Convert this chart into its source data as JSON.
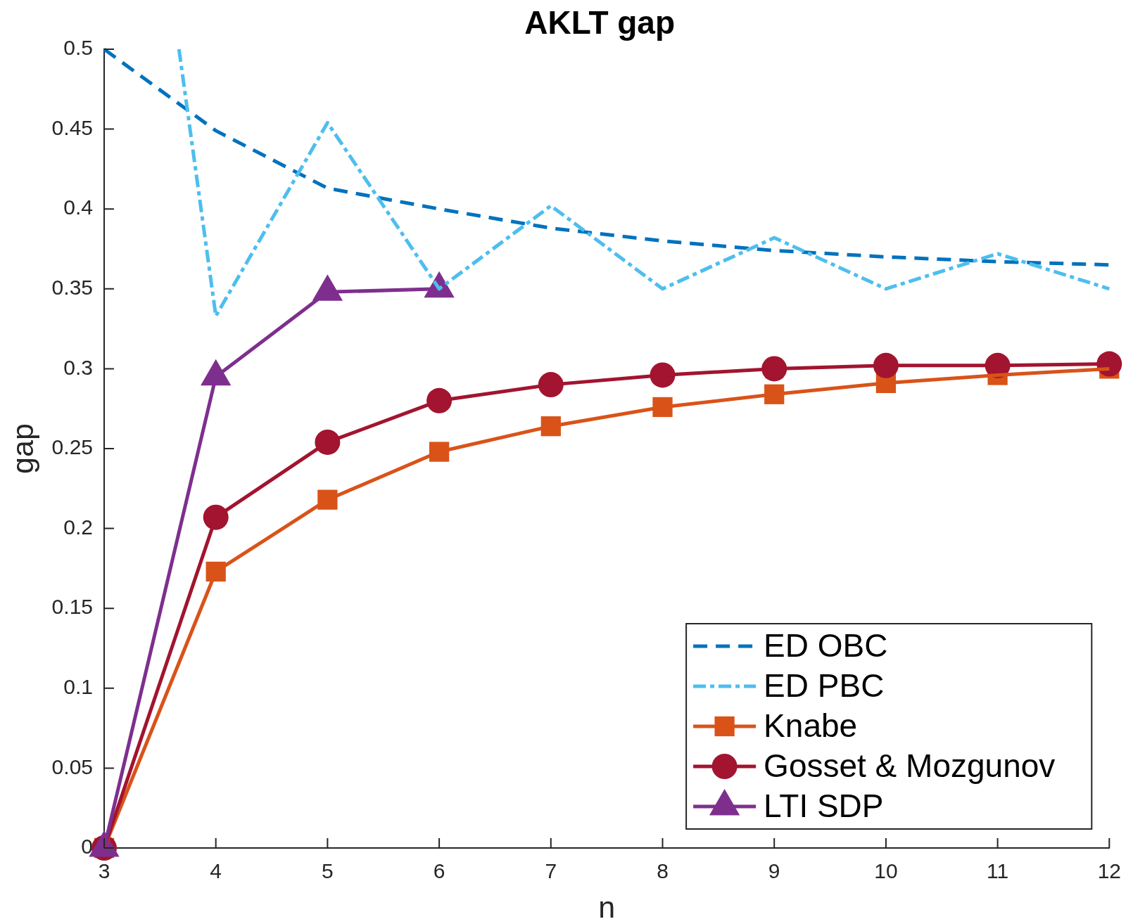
{
  "chart_data": {
    "type": "line",
    "title": "AKLT gap",
    "xlabel": "n",
    "ylabel": "gap",
    "x": [
      3,
      4,
      5,
      6,
      7,
      8,
      9,
      10,
      11,
      12
    ],
    "xlim": [
      3,
      12
    ],
    "xticks": [
      3,
      4,
      5,
      6,
      7,
      8,
      9,
      10,
      11,
      12
    ],
    "ylim": [
      0,
      0.5
    ],
    "yticks": [
      0,
      0.05,
      0.1,
      0.15,
      0.2,
      0.25,
      0.3,
      0.35,
      0.4,
      0.45,
      0.5
    ],
    "legend": "bottom right",
    "series": [
      {
        "name": "ED OBC",
        "color": "#0072bd",
        "line_style": "dashed",
        "marker": "none",
        "values": [
          0.5,
          0.449,
          0.413,
          0.4,
          0.388,
          0.38,
          0.374,
          0.37,
          0.367,
          0.365
        ]
      },
      {
        "name": "ED PBC",
        "color": "#4dbeee",
        "line_style": "dashdot",
        "marker": "none",
        "x": [
          3.67,
          4,
          5,
          6,
          7,
          8,
          9,
          10,
          11,
          12
        ],
        "values": [
          0.5,
          0.333,
          0.454,
          0.35,
          0.402,
          0.35,
          0.382,
          0.35,
          0.372,
          0.35
        ]
      },
      {
        "name": "Knabe",
        "color": "#d95319",
        "line_style": "solid",
        "marker": "square",
        "values": [
          0,
          0.173,
          0.218,
          0.248,
          0.264,
          0.276,
          0.284,
          0.291,
          0.296,
          0.3
        ]
      },
      {
        "name": "Gosset & Mozgunov",
        "color": "#a2142f",
        "line_style": "solid",
        "marker": "circle",
        "values": [
          0,
          0.207,
          0.254,
          0.28,
          0.29,
          0.296,
          0.3,
          0.302,
          0.302,
          0.303
        ]
      },
      {
        "name": "LTI SDP",
        "color": "#7e2f8e",
        "line_style": "solid",
        "marker": "triangle",
        "x": [
          3,
          4,
          5,
          6
        ],
        "values": [
          0,
          0.295,
          0.348,
          0.35
        ]
      }
    ]
  }
}
